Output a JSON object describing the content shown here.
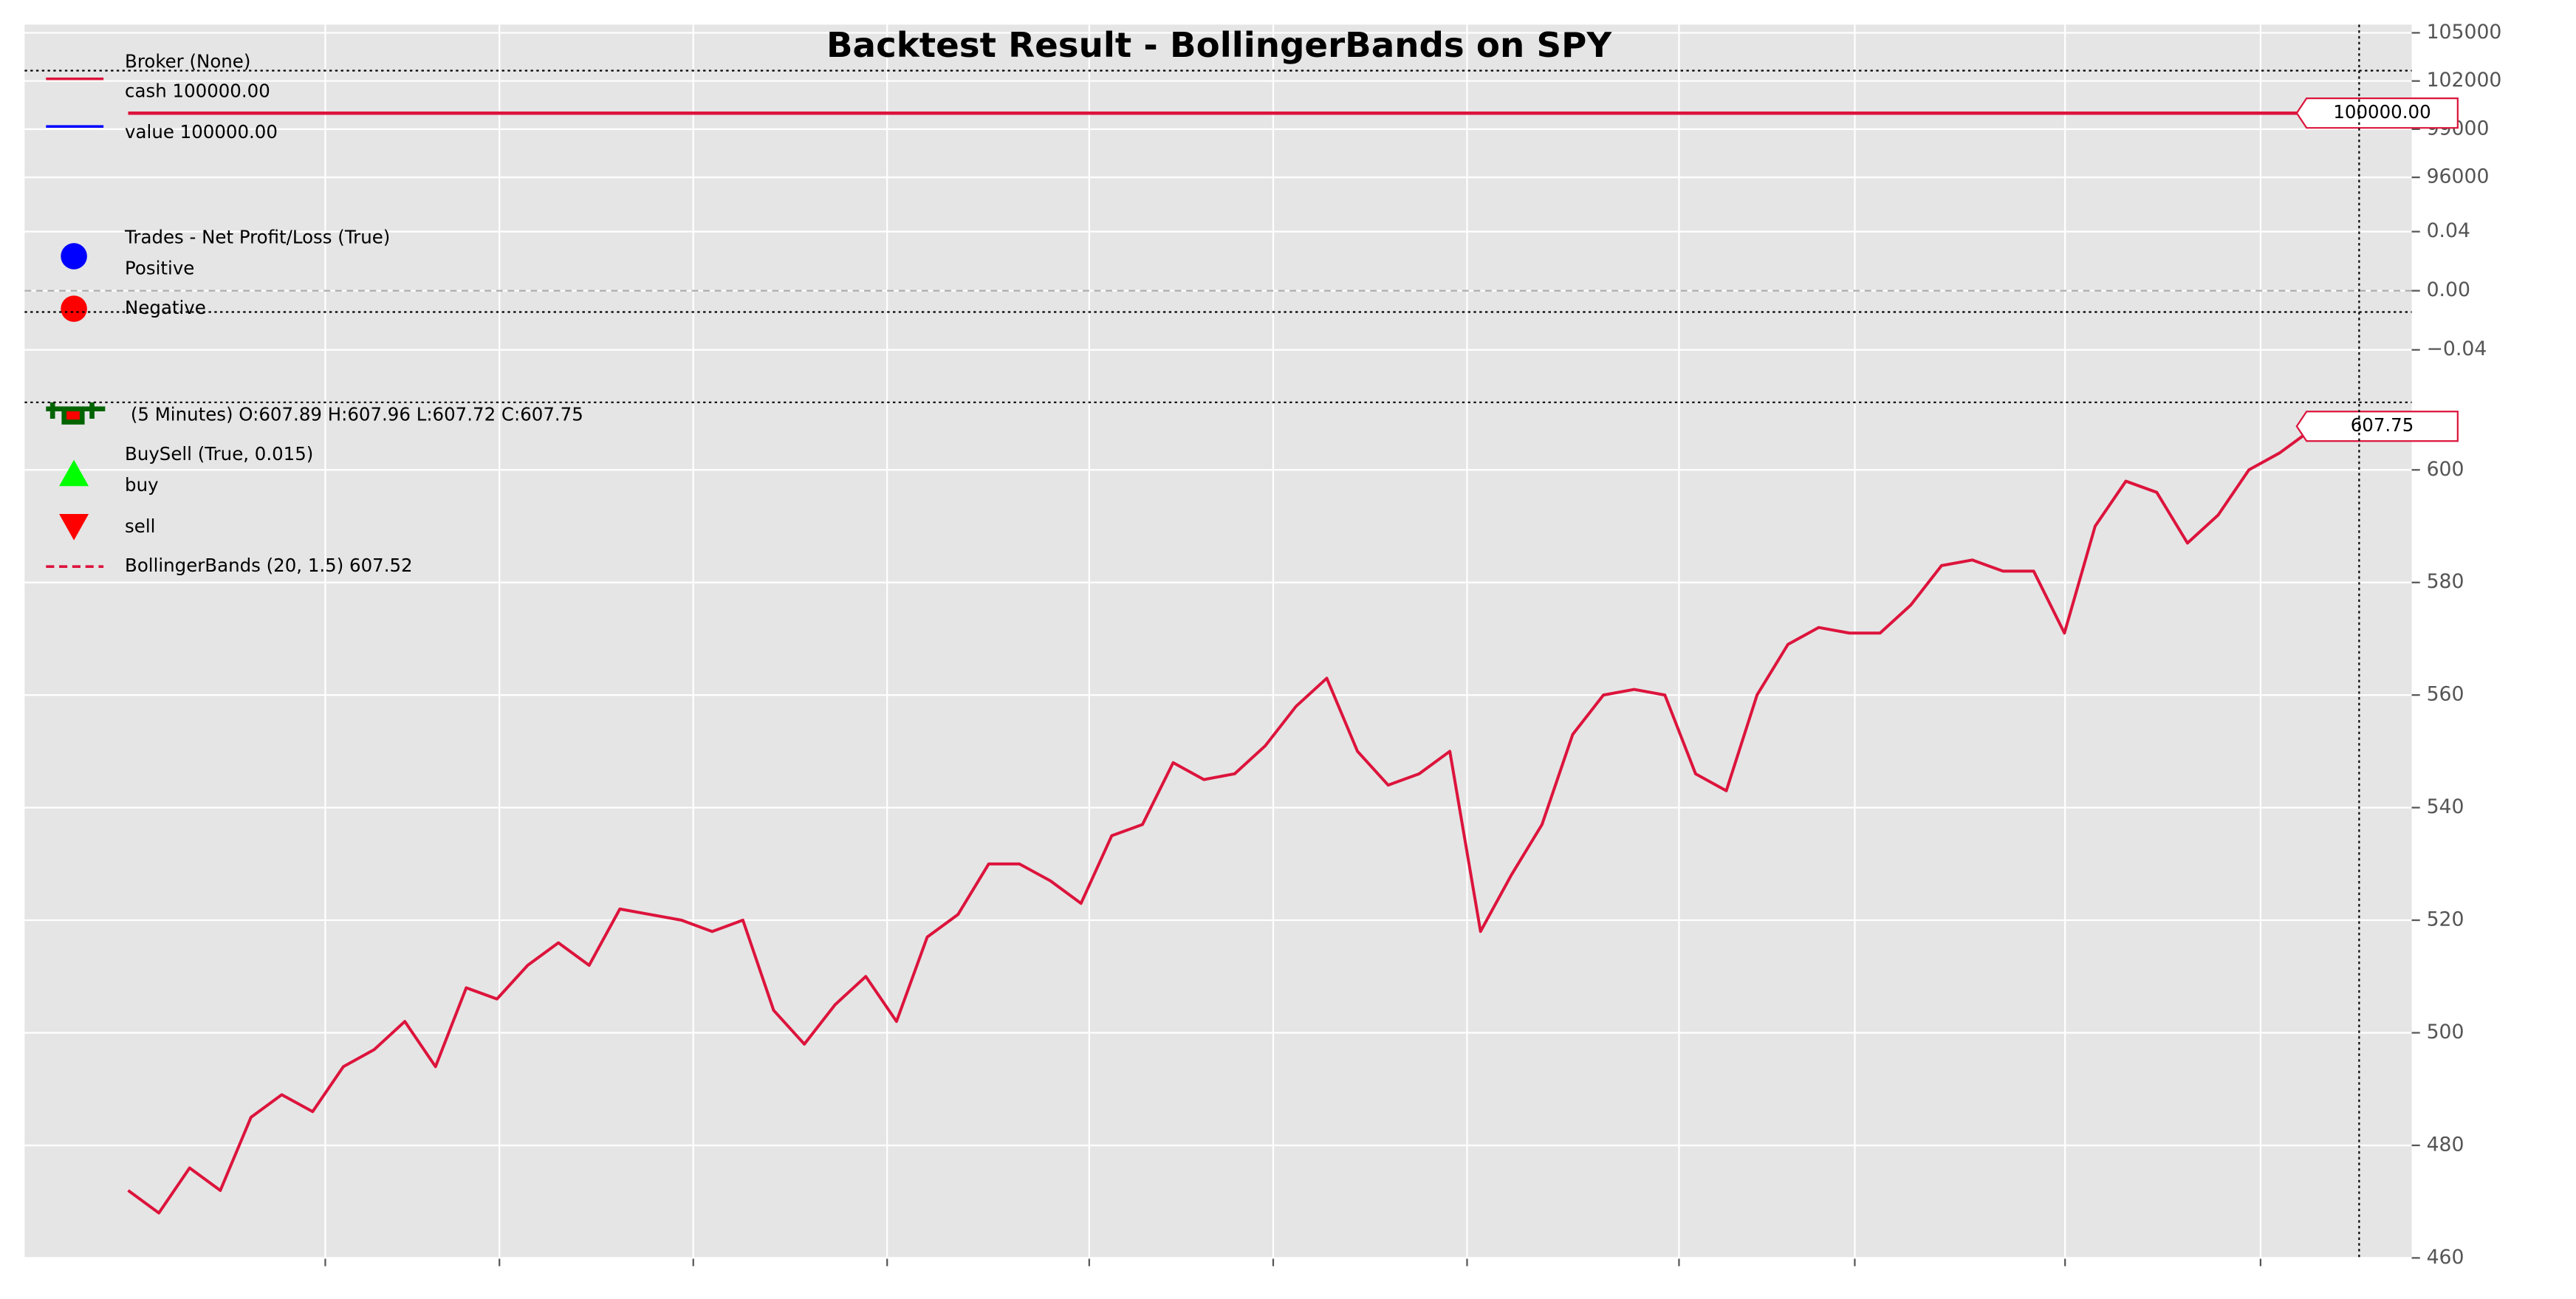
{
  "title": "Backtest Result - BollingerBands on SPY",
  "chart_data": [
    {
      "type": "line",
      "ylim": [
        94260,
        105510
      ],
      "yticks": [
        96000,
        99000,
        102000,
        105000
      ],
      "grid": true,
      "legend": [
        {
          "label": "Broker (None)",
          "marker": "none"
        },
        {
          "label": "cash 100000.00",
          "marker": "line",
          "color": "#dc143c"
        },
        {
          "label": "value 100000.00",
          "marker": "line",
          "color": "#0000ff"
        }
      ],
      "series": [
        {
          "name": "value",
          "color": "#0000ff",
          "values": [
            100000,
            100000
          ]
        },
        {
          "name": "cash",
          "color": "#dc143c",
          "values": [
            100000,
            100000
          ],
          "last_label": "100000.00"
        }
      ]
    },
    {
      "type": "scatter",
      "ylim": [
        -0.0733,
        0.0556
      ],
      "yticks": [
        {
          "value": -0.04,
          "label": "−0.04"
        },
        {
          "value": 0,
          "label": "0.00"
        },
        {
          "value": 0.04,
          "label": "0.04"
        }
      ],
      "grid": true,
      "zero_line": true,
      "legend": [
        {
          "label": "Trades - Net Profit/Loss (True)",
          "marker": "none"
        },
        {
          "label": "Positive",
          "marker": "circle",
          "color": "#0000ff"
        },
        {
          "label": "Negative",
          "marker": "circle",
          "color": "#ff0000"
        }
      ],
      "series": [
        {
          "name": "Positive",
          "color": "#0000ff",
          "values": []
        },
        {
          "name": "Negative",
          "color": "#ff0000",
          "values": []
        }
      ]
    },
    {
      "type": "line",
      "ylim": [
        460,
        612
      ],
      "yticks": [
        460,
        480,
        500,
        520,
        540,
        560,
        580,
        600
      ],
      "grid": true,
      "legend": [
        {
          "label": " (5 Minutes) O:607.89 H:607.96 L:607.72 C:607.75",
          "marker": "candle",
          "color": "#006400"
        },
        {
          "label": "BuySell (True, 0.015)",
          "marker": "none"
        },
        {
          "label": "buy",
          "marker": "triangle-up",
          "color": "#00ff00"
        },
        {
          "label": "sell",
          "marker": "triangle-down",
          "color": "#ff0000"
        },
        {
          "label": "BollingerBands (20, 1.5) 607.52",
          "marker": "dash",
          "color": "#dc143c"
        }
      ],
      "series": [
        {
          "name": "SPY",
          "color": "#dc143c",
          "last_label": "607.75",
          "values": [
            472,
            468,
            476,
            472,
            485,
            489,
            486,
            494,
            497,
            502,
            494,
            508,
            506,
            512,
            516,
            512,
            522,
            521,
            520,
            518,
            520,
            504,
            498,
            505,
            510,
            502,
            517,
            521,
            530,
            530,
            527,
            523,
            535,
            537,
            548,
            545,
            546,
            551,
            558,
            563,
            550,
            544,
            546,
            550,
            518,
            528,
            537,
            553,
            560,
            561,
            560,
            546,
            543,
            560,
            569,
            572,
            571,
            571,
            576,
            583,
            584,
            582,
            582,
            571,
            590,
            598,
            596,
            587,
            592,
            600,
            603,
            607,
            607.75
          ]
        }
      ]
    }
  ]
}
